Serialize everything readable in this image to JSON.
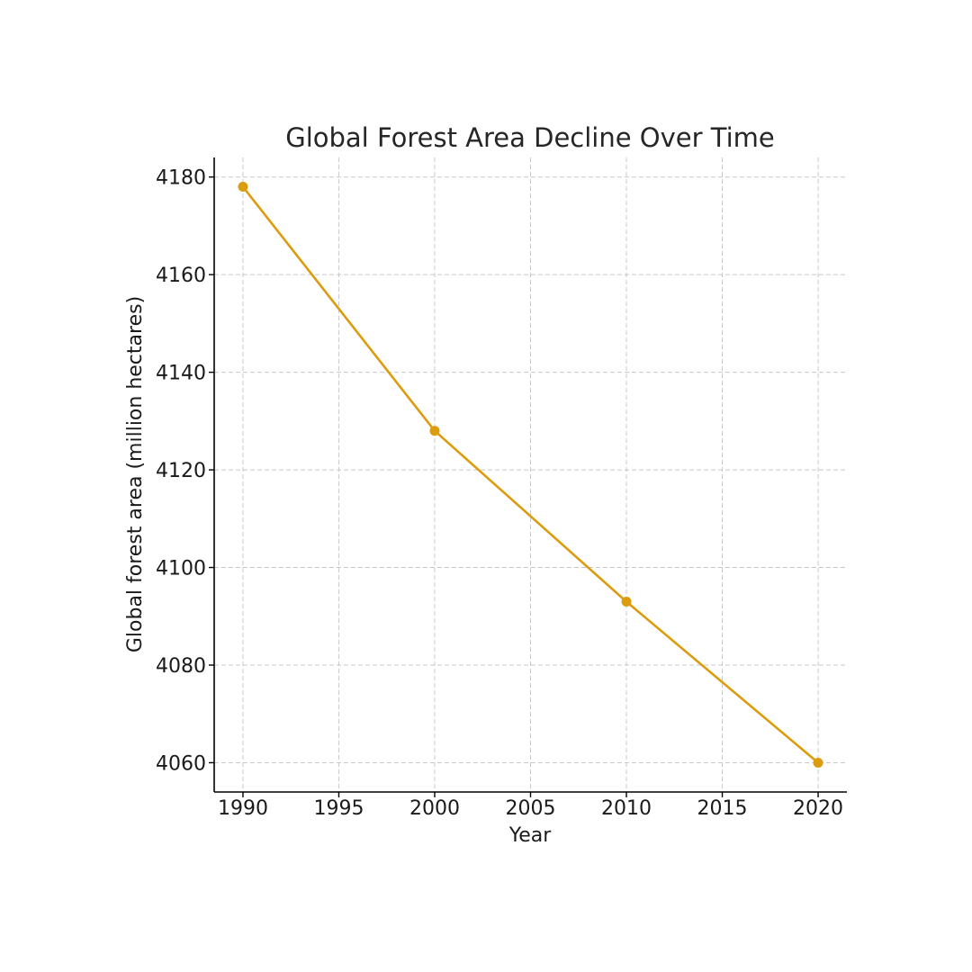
{
  "chart_data": {
    "type": "line",
    "title": "Global Forest Area Decline Over Time",
    "xlabel": "Year",
    "ylabel": "Global forest area (million hectares)",
    "x": [
      1990,
      2000,
      2010,
      2020
    ],
    "series": [
      {
        "values": [
          4178,
          4128,
          4093,
          4060
        ]
      }
    ],
    "xlim": [
      1988.5,
      2021.5
    ],
    "ylim": [
      4054,
      4184
    ],
    "xticks": [
      1990,
      1995,
      2000,
      2005,
      2010,
      2015,
      2020
    ],
    "yticks": [
      4060,
      4080,
      4100,
      4120,
      4140,
      4160,
      4180
    ],
    "grid": true,
    "marker": "circle",
    "colors": {
      "line": "#DB9C0E"
    }
  }
}
